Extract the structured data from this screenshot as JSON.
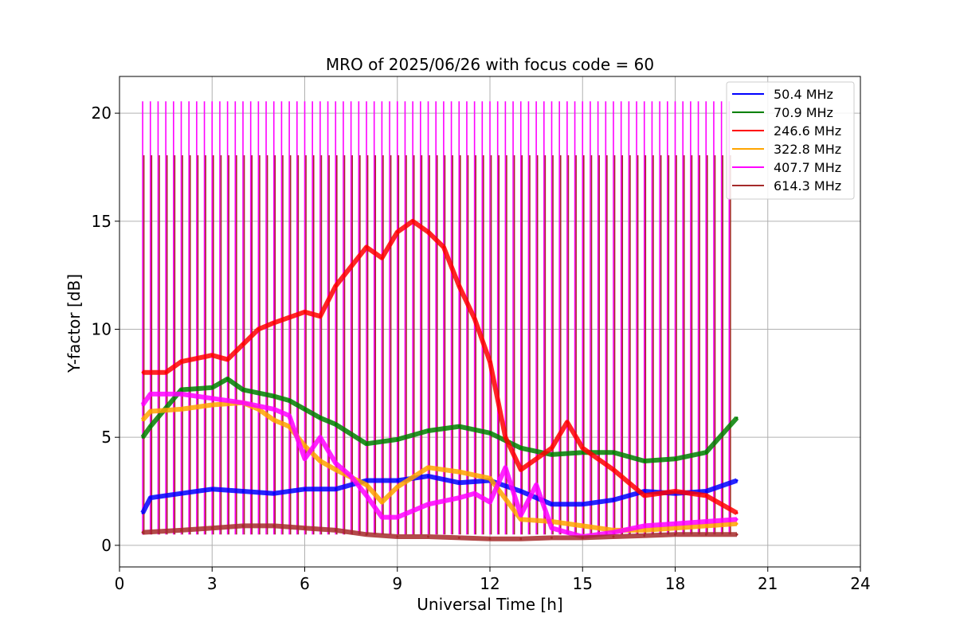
{
  "chart_data": {
    "type": "line",
    "title": "MRO of 2025/06/26 with focus code = 60",
    "xlabel": "Universal Time [h]",
    "ylabel": "Y-factor [dB]",
    "xlim": [
      0,
      24
    ],
    "ylim": [
      -1,
      21.7
    ],
    "xticks": [
      "0",
      "3",
      "6",
      "9",
      "12",
      "15",
      "18",
      "21",
      "24"
    ],
    "yticks": [
      "0",
      "5",
      "10",
      "15",
      "20"
    ],
    "grid": true,
    "legend_position": "top-right",
    "series": [
      {
        "name": " 50.4 MHz",
        "color": "#0000ff",
        "x": [
          0.75,
          1.0,
          2.0,
          3.0,
          4.0,
          5.0,
          6.0,
          7.0,
          8.0,
          9.0,
          10.0,
          11.0,
          12.0,
          13.0,
          14.0,
          15.0,
          16.0,
          17.0,
          18.0,
          19.0,
          20.0
        ],
        "values": [
          1.5,
          2.2,
          2.4,
          2.6,
          2.5,
          2.4,
          2.6,
          2.6,
          3.0,
          3.0,
          3.2,
          2.9,
          3.0,
          2.5,
          1.9,
          1.9,
          2.1,
          2.5,
          2.4,
          2.5,
          3.0
        ]
      },
      {
        "name": " 70.9 MHz",
        "color": "#008000",
        "x": [
          0.75,
          1.0,
          2.0,
          3.0,
          3.5,
          4.0,
          5.0,
          5.5,
          6.0,
          6.5,
          7.0,
          8.0,
          9.0,
          10.0,
          11.0,
          12.0,
          13.0,
          14.0,
          15.0,
          16.0,
          17.0,
          18.0,
          19.0,
          20.0
        ],
        "values": [
          5.0,
          5.5,
          7.2,
          7.3,
          7.7,
          7.2,
          6.9,
          6.7,
          6.3,
          5.9,
          5.6,
          4.7,
          4.9,
          5.3,
          5.5,
          5.2,
          4.5,
          4.2,
          4.3,
          4.3,
          3.9,
          4.0,
          4.3,
          5.9
        ]
      },
      {
        "name": "246.6 MHz",
        "color": "#ff0000",
        "x": [
          0.75,
          1.5,
          2.0,
          3.0,
          3.5,
          4.0,
          4.5,
          5.0,
          6.0,
          6.5,
          7.0,
          8.0,
          8.5,
          9.0,
          9.5,
          10.0,
          10.5,
          11.0,
          11.5,
          12.0,
          12.5,
          13.0,
          14.0,
          14.5,
          15.0,
          16.0,
          17.0,
          18.0,
          19.0,
          20.0
        ],
        "values": [
          8.0,
          8.0,
          8.5,
          8.8,
          8.6,
          9.3,
          10.0,
          10.3,
          10.8,
          10.6,
          12.0,
          13.8,
          13.3,
          14.5,
          15.0,
          14.5,
          13.8,
          12.0,
          10.5,
          8.5,
          5.0,
          3.5,
          4.5,
          5.7,
          4.5,
          3.5,
          2.3,
          2.5,
          2.3,
          1.5
        ]
      },
      {
        "name": "322.8 MHz",
        "color": "#ffa500",
        "x": [
          0.75,
          1.0,
          2.0,
          3.0,
          4.0,
          4.5,
          5.0,
          5.5,
          6.0,
          6.5,
          7.0,
          8.0,
          8.5,
          9.0,
          10.0,
          11.0,
          12.0,
          13.0,
          14.0,
          15.0,
          16.0,
          17.0,
          18.0,
          19.0,
          20.0
        ],
        "values": [
          5.8,
          6.2,
          6.3,
          6.5,
          6.6,
          6.3,
          5.8,
          5.5,
          4.6,
          3.9,
          3.5,
          2.8,
          2.0,
          2.7,
          3.6,
          3.4,
          3.1,
          1.2,
          1.1,
          0.9,
          0.7,
          0.7,
          0.8,
          0.9,
          1.0
        ]
      },
      {
        "name": "407.7 MHz",
        "color": "#ff00ff",
        "x": [
          0.75,
          1.0,
          2.0,
          3.0,
          4.0,
          5.0,
          5.5,
          6.0,
          6.5,
          7.0,
          7.5,
          8.0,
          8.5,
          9.0,
          10.0,
          11.0,
          11.5,
          12.0,
          12.5,
          13.0,
          13.5,
          14.0,
          14.5,
          15.0,
          16.0,
          17.0,
          18.0,
          19.0,
          20.0
        ],
        "values": [
          6.5,
          7.0,
          7.0,
          6.8,
          6.6,
          6.3,
          6.0,
          4.0,
          5.0,
          3.8,
          3.2,
          2.3,
          1.3,
          1.3,
          1.9,
          2.2,
          2.4,
          2.0,
          3.6,
          1.4,
          2.8,
          0.8,
          0.6,
          0.4,
          0.6,
          0.9,
          1.0,
          1.1,
          1.2
        ]
      },
      {
        "name": "614.3 MHz",
        "color": "#a52a2a",
        "x": [
          0.75,
          2.0,
          3.0,
          4.0,
          5.0,
          6.0,
          7.0,
          8.0,
          9.0,
          10.0,
          11.0,
          12.0,
          13.0,
          14.0,
          15.0,
          16.0,
          17.0,
          18.0,
          19.0,
          20.0
        ],
        "values": [
          0.6,
          0.7,
          0.8,
          0.9,
          0.9,
          0.8,
          0.7,
          0.5,
          0.4,
          0.4,
          0.35,
          0.3,
          0.3,
          0.35,
          0.35,
          0.4,
          0.45,
          0.5,
          0.5,
          0.5
        ]
      }
    ]
  }
}
